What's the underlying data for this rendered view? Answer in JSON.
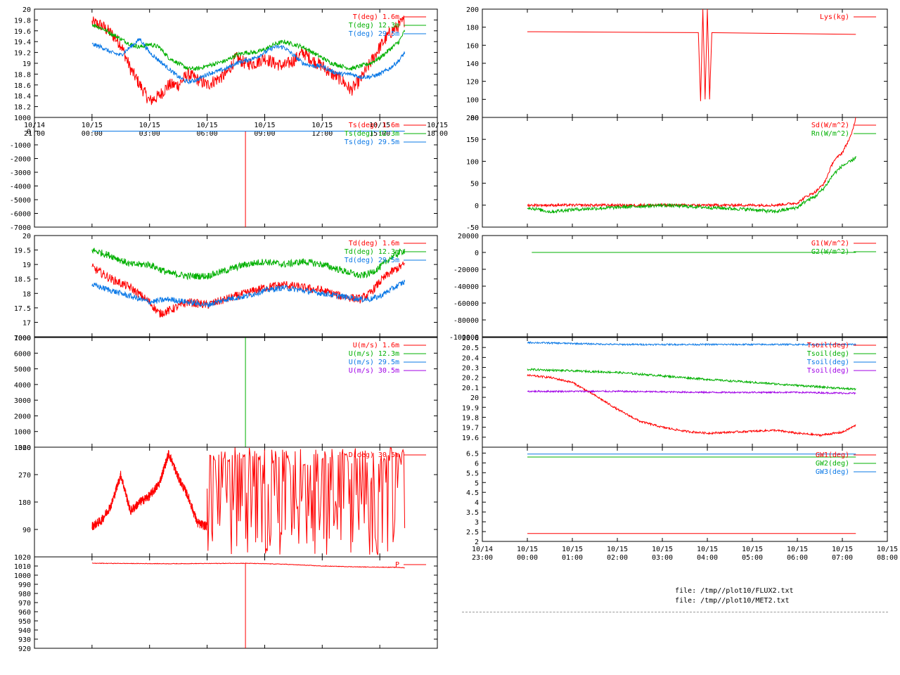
{
  "colors": {
    "red": "#ff0000",
    "green": "#00b000",
    "blue": "#0a78e6",
    "purple": "#a000e6",
    "black": "#000000"
  },
  "files": [
    "file: /tmp//plot10/FLUX2.txt",
    "file: /tmp//plot10/MET2.txt"
  ],
  "chart_data": [
    {
      "type": "line",
      "ylim": [
        18.0,
        20.0
      ],
      "ytick_labels": [
        "18.2",
        "18.4",
        "18.6",
        "18.8",
        "19",
        "19.2",
        "19.4",
        "19.6",
        "19.8",
        "20"
      ],
      "xlim": [
        -3,
        18
      ],
      "x_tick_labels": [
        [
          "10/14",
          "21:00"
        ],
        [
          "10/15",
          "00:00"
        ],
        [
          "10/15",
          "03:00"
        ],
        [
          "10/15",
          "06:00"
        ],
        [
          "10/15",
          "09:00"
        ],
        [
          "10/15",
          "12:00"
        ],
        [
          "10/15",
          "15:00"
        ],
        [
          "10/15",
          "18:00"
        ]
      ],
      "series": [
        {
          "name": "T(deg)  1.6m",
          "color": "red",
          "x": [
            0,
            0.5,
            1,
            1.5,
            2,
            2.5,
            3,
            3.5,
            4,
            4.5,
            5,
            5.5,
            6,
            6.5,
            7,
            7.5,
            8,
            8.5,
            9,
            9.5,
            10,
            10.5,
            11,
            11.5,
            12,
            12.5,
            13,
            13.5,
            14,
            14.5,
            15,
            15.5,
            16,
            16.3
          ],
          "y": [
            19.75,
            19.7,
            19.55,
            19.35,
            18.9,
            18.6,
            18.3,
            18.4,
            18.6,
            18.6,
            18.8,
            18.7,
            18.6,
            18.7,
            18.8,
            19.1,
            19.0,
            19.0,
            19.1,
            19.0,
            18.95,
            19.05,
            19.2,
            19.05,
            18.95,
            18.8,
            18.7,
            18.5,
            18.7,
            19.0,
            19.3,
            19.55,
            19.7,
            19.8
          ],
          "noise": 0.12
        },
        {
          "name": "T(deg) 12.3m",
          "color": "green",
          "x": [
            0,
            0.5,
            1,
            1.5,
            2,
            2.5,
            3,
            3.5,
            4,
            4.5,
            5,
            5.5,
            6,
            6.5,
            7,
            7.5,
            8,
            8.5,
            9,
            9.5,
            10,
            10.5,
            11,
            11.5,
            12,
            12.5,
            13,
            13.5,
            14,
            14.5,
            15,
            15.5,
            16,
            16.3
          ],
          "y": [
            19.72,
            19.65,
            19.55,
            19.45,
            19.35,
            19.3,
            19.35,
            19.3,
            19.1,
            19.0,
            18.9,
            18.9,
            18.95,
            19.0,
            19.05,
            19.15,
            19.2,
            19.2,
            19.25,
            19.35,
            19.4,
            19.35,
            19.3,
            19.2,
            19.1,
            19.0,
            18.95,
            18.9,
            18.95,
            19.0,
            19.1,
            19.25,
            19.4,
            19.6
          ],
          "noise": 0.04
        },
        {
          "name": "T(deg) 29.5m",
          "color": "blue",
          "x": [
            0,
            0.5,
            1,
            1.5,
            2,
            2.5,
            3,
            3.5,
            4,
            4.5,
            5,
            5.5,
            6,
            6.5,
            7,
            7.5,
            8,
            8.5,
            9,
            9.5,
            10,
            10.5,
            11,
            11.5,
            12,
            12.5,
            13,
            13.5,
            14,
            14.5,
            15,
            15.5,
            16,
            16.3
          ],
          "y": [
            19.35,
            19.3,
            19.2,
            19.15,
            19.3,
            19.45,
            19.2,
            19.05,
            18.9,
            18.75,
            18.65,
            18.7,
            18.8,
            18.85,
            18.9,
            19.0,
            19.05,
            19.1,
            19.2,
            19.3,
            19.3,
            19.15,
            19.0,
            18.95,
            18.95,
            18.85,
            18.8,
            18.8,
            18.75,
            18.75,
            18.8,
            18.9,
            19.05,
            19.2
          ],
          "noise": 0.04
        }
      ]
    },
    {
      "type": "line",
      "ylim": [
        -7000,
        1000
      ],
      "ytick_labels": [
        "-7000",
        "-6000",
        "-5000",
        "-4000",
        "-3000",
        "-2000",
        "-1000",
        "0",
        "1000"
      ],
      "xlim": [
        -3,
        18
      ],
      "series": [
        {
          "name": "Ts(deg)  1.6m",
          "color": "red",
          "x": [
            0,
            8.0,
            8.0,
            8.0,
            16.3
          ],
          "y": [
            0,
            0,
            -7000,
            0,
            0
          ],
          "noise": 0
        },
        {
          "name": "Ts(deg) 12.3m",
          "color": "green",
          "x": [
            0,
            16.3
          ],
          "y": [
            0,
            0
          ],
          "noise": 0
        },
        {
          "name": "Ts(deg) 29.5m",
          "color": "blue",
          "x": [
            0,
            16.3
          ],
          "y": [
            0,
            0
          ],
          "noise": 0
        }
      ]
    },
    {
      "type": "line",
      "ylim": [
        16.5,
        20.0
      ],
      "ytick_labels": [
        "17",
        "17.5",
        "18",
        "18.5",
        "19",
        "19.5",
        "20"
      ],
      "xlim": [
        -3,
        18
      ],
      "series": [
        {
          "name": "Td(deg)  1.6m",
          "color": "red",
          "x": [
            0,
            1,
            2,
            3,
            3.5,
            4,
            5,
            6,
            7,
            8,
            9,
            10,
            11,
            12,
            13,
            14,
            14.5,
            15,
            15.5,
            16,
            16.3
          ],
          "y": [
            18.9,
            18.5,
            18.2,
            17.7,
            17.3,
            17.4,
            17.7,
            17.6,
            17.8,
            18.0,
            18.2,
            18.3,
            18.2,
            18.1,
            17.9,
            17.8,
            18.0,
            18.4,
            18.7,
            18.9,
            19.0
          ],
          "noise": 0.15
        },
        {
          "name": "Td(deg) 12.3m",
          "color": "green",
          "x": [
            0,
            1,
            2,
            3,
            4,
            5,
            6,
            7,
            8,
            9,
            10,
            11,
            12,
            13,
            14,
            14.5,
            15,
            15.5,
            16,
            16.3
          ],
          "y": [
            19.5,
            19.3,
            19.0,
            19.0,
            18.7,
            18.6,
            18.6,
            18.8,
            19.0,
            19.1,
            19.0,
            19.1,
            19.0,
            18.8,
            18.6,
            18.7,
            18.9,
            19.2,
            19.4,
            19.5
          ],
          "noise": 0.12
        },
        {
          "name": "Td(deg) 29.5m",
          "color": "blue",
          "x": [
            0,
            1,
            2,
            3,
            4,
            5,
            6,
            7,
            8,
            9,
            10,
            11,
            12,
            13,
            14,
            14.5,
            15,
            15.5,
            16,
            16.3
          ],
          "y": [
            18.3,
            18.1,
            17.9,
            17.7,
            17.8,
            17.7,
            17.6,
            17.8,
            17.9,
            18.1,
            18.2,
            18.1,
            18.0,
            17.9,
            17.8,
            17.8,
            17.9,
            18.1,
            18.3,
            18.4
          ],
          "noise": 0.1
        }
      ]
    },
    {
      "type": "line",
      "ylim": [
        0,
        7000
      ],
      "ytick_labels": [
        "1000",
        "2000",
        "3000",
        "4000",
        "5000",
        "6000",
        "7000"
      ],
      "top_label": "1000",
      "xlim": [
        -3,
        18
      ],
      "series": [
        {
          "name": "U(m/s)  1.6m",
          "color": "red",
          "x": [
            0,
            16.3
          ],
          "y": [
            0,
            0
          ],
          "noise": 0
        },
        {
          "name": "U(m/s) 12.3m",
          "color": "green",
          "x": [
            8.0,
            8.0
          ],
          "y": [
            0,
            7000
          ],
          "noise": 0
        },
        {
          "name": "U(m/s) 29.5m",
          "color": "blue",
          "x": [
            0,
            16.3
          ],
          "y": [
            0,
            0
          ],
          "noise": 0
        },
        {
          "name": "U(m/s) 30.5m",
          "color": "purple",
          "x": [
            0,
            16.3
          ],
          "y": [
            0,
            0
          ],
          "noise": 0
        }
      ]
    },
    {
      "type": "line",
      "ylim": [
        0,
        360
      ],
      "ytick_labels": [
        "90",
        "180",
        "270",
        "360"
      ],
      "top_label": "1020",
      "xlim": [
        -3,
        18
      ],
      "series": [
        {
          "name": "D(deg) 30.5m",
          "color": "red",
          "x": [
            0,
            0.5,
            1,
            1.5,
            2,
            2.5,
            3,
            3.5,
            4,
            4.5,
            5,
            5.5,
            6
          ],
          "y": [
            100,
            120,
            170,
            270,
            150,
            180,
            200,
            240,
            340,
            260,
            200,
            110,
            100
          ],
          "noise": 15,
          "chaotic_from": 6,
          "chaotic_to": 16.3
        }
      ]
    },
    {
      "type": "line",
      "ylim": [
        920,
        1020
      ],
      "ytick_labels": [
        "920",
        "930",
        "940",
        "950",
        "960",
        "970",
        "980",
        "990",
        "1000",
        "1010",
        "1020"
      ],
      "xlim": [
        -3,
        18
      ],
      "series": [
        {
          "name": "P",
          "color": "red",
          "x": [
            0,
            4,
            8,
            10,
            12,
            14,
            16,
            16.3
          ],
          "y": [
            1013,
            1012.5,
            1013,
            1012,
            1010,
            1009,
            1008.5,
            1008
          ],
          "noise": 0.3
        },
        {
          "name": "P spike",
          "color": "red",
          "x": [
            8.0,
            8.0
          ],
          "y": [
            920,
            1013
          ],
          "noise": 0
        }
      ]
    },
    {
      "type": "line",
      "ylim": [
        80,
        200
      ],
      "ytick_labels": [
        "100",
        "120",
        "140",
        "160",
        "180",
        "200"
      ],
      "bottom_label": "80",
      "xlim": [
        -1,
        8
      ],
      "series": [
        {
          "name": "Lys(kg)",
          "color": "red",
          "x": [
            0,
            3.8,
            3.85,
            3.9,
            3.95,
            4.0,
            4.05,
            4.1,
            7.3
          ],
          "y": [
            175,
            174,
            98,
            200,
            100,
            200,
            100,
            174,
            172
          ],
          "noise": 0
        }
      ]
    },
    {
      "type": "line",
      "ylim": [
        -50,
        200
      ],
      "ytick_labels": [
        "-50",
        "0",
        "50",
        "100",
        "150",
        "200"
      ],
      "xlim": [
        -1,
        8
      ],
      "series": [
        {
          "name": "Sd(W/m^2)",
          "color": "red",
          "x": [
            0,
            5.5,
            6.0,
            6.2,
            6.4,
            6.6,
            6.8,
            7.0,
            7.2,
            7.3
          ],
          "y": [
            0,
            0,
            5,
            20,
            30,
            50,
            100,
            120,
            160,
            200
          ],
          "noise": 3
        },
        {
          "name": "Rn(W/m^2)",
          "color": "green",
          "x": [
            0,
            0.5,
            1,
            2,
            3,
            4,
            5,
            5.5,
            6.0,
            6.2,
            6.4,
            6.6,
            6.8,
            7.0,
            7.2,
            7.3
          ],
          "y": [
            -5,
            -15,
            -10,
            -5,
            0,
            -5,
            -10,
            -15,
            -5,
            10,
            20,
            40,
            70,
            90,
            100,
            110
          ],
          "noise": 4
        }
      ]
    },
    {
      "type": "line",
      "ylim": [
        -100000,
        20000
      ],
      "ytick_labels": [
        "-80000",
        "-60000",
        "-40000",
        "-20000",
        "0",
        "20000"
      ],
      "bottom_label": "-100000",
      "xlim": [
        -1,
        8
      ],
      "series": [
        {
          "name": "G1(W/m^2)",
          "color": "red",
          "x": [
            0.1,
            7.3
          ],
          "y": [
            0,
            0
          ],
          "noise": 0
        },
        {
          "name": "G2(W/m^2)",
          "color": "green",
          "x": [
            0.1,
            7.3
          ],
          "y": [
            0,
            0
          ],
          "noise": 0
        }
      ]
    },
    {
      "type": "line",
      "ylim": [
        19.5,
        20.6
      ],
      "ytick_labels": [
        "19.6",
        "19.7",
        "19.8",
        "19.9",
        "20",
        "20.1",
        "20.2",
        "20.3",
        "20.4",
        "20.5"
      ],
      "top_label": "20.6",
      "xlim": [
        -1,
        8
      ],
      "series": [
        {
          "name": "Tsoil(deg)",
          "color": "red",
          "x": [
            0,
            0.5,
            1,
            1.5,
            2,
            2.5,
            3,
            3.5,
            4,
            5,
            5.5,
            6,
            6.5,
            7,
            7.3
          ],
          "y": [
            20.22,
            20.2,
            20.15,
            20.02,
            19.88,
            19.76,
            19.7,
            19.66,
            19.64,
            19.66,
            19.67,
            19.64,
            19.62,
            19.65,
            19.72
          ],
          "noise": 0.01
        },
        {
          "name": "Tsoil(deg)",
          "color": "green",
          "x": [
            0,
            2,
            4,
            6,
            7.3
          ],
          "y": [
            20.28,
            20.25,
            20.18,
            20.12,
            20.08
          ],
          "noise": 0.01
        },
        {
          "name": "Tsoil(deg)",
          "color": "blue",
          "x": [
            0,
            2,
            4,
            6,
            7.3
          ],
          "y": [
            20.55,
            20.53,
            20.53,
            20.53,
            20.53
          ],
          "noise": 0.008
        },
        {
          "name": "Tsoil(deg)",
          "color": "purple",
          "x": [
            0,
            2,
            4,
            6,
            7.3
          ],
          "y": [
            20.06,
            20.06,
            20.05,
            20.05,
            20.04
          ],
          "noise": 0.008
        }
      ]
    },
    {
      "type": "line",
      "ylim": [
        2,
        6.8
      ],
      "ytick_labels": [
        "2",
        "2.5",
        "3",
        "3.5",
        "4",
        "4.5",
        "5",
        "5.5",
        "6",
        "6.5"
      ],
      "xlim": [
        -1,
        8
      ],
      "x_tick_labels": [
        [
          "10/14",
          "23:00"
        ],
        [
          "10/15",
          "00:00"
        ],
        [
          "10/15",
          "01:00"
        ],
        [
          "10/15",
          "02:00"
        ],
        [
          "10/15",
          "03:00"
        ],
        [
          "10/15",
          "04:00"
        ],
        [
          "10/15",
          "05:00"
        ],
        [
          "10/15",
          "06:00"
        ],
        [
          "10/15",
          "07:00"
        ],
        [
          "10/15",
          "08:00"
        ]
      ],
      "series": [
        {
          "name": "GW1(deg)",
          "color": "red",
          "x": [
            0,
            7.3
          ],
          "y": [
            2.4,
            2.4
          ],
          "noise": 0
        },
        {
          "name": "GW2(deg)",
          "color": "green",
          "x": [
            0,
            7.3
          ],
          "y": [
            6.3,
            6.3
          ],
          "noise": 0
        },
        {
          "name": "GW3(deg)",
          "color": "blue",
          "x": [
            0,
            7.3
          ],
          "y": [
            6.45,
            6.45
          ],
          "noise": 0
        }
      ]
    }
  ]
}
